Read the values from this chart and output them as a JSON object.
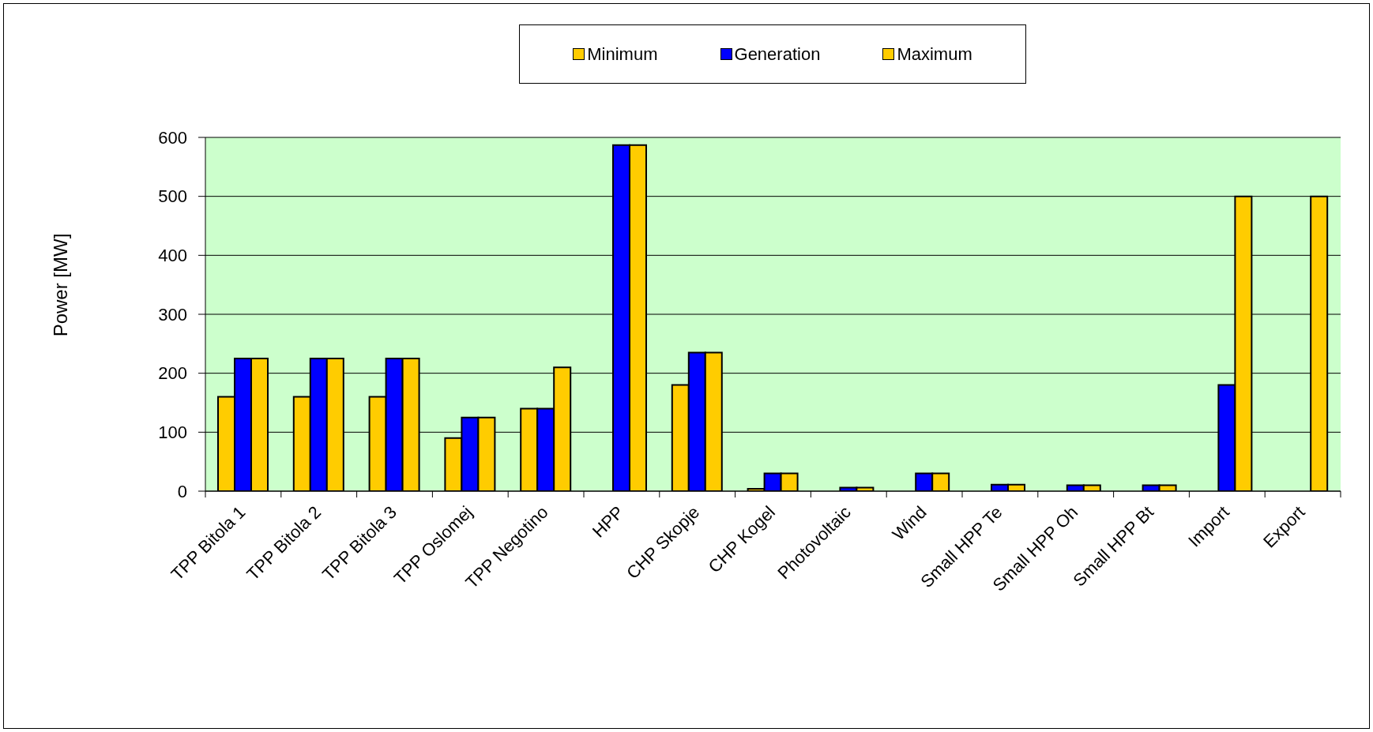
{
  "chart_data": {
    "type": "bar",
    "ylabel": "Power [MW]",
    "categories": [
      "TPP Bitola 1",
      "TPP Bitola 2",
      "TPP Bitola 3",
      "TPP Oslomej",
      "TPP Negotino",
      "HPP",
      "CHP Skopje",
      "CHP Kogel",
      "Photovoltaic",
      "Wind",
      "Small HPP Te",
      "Small HPP Oh",
      "Small HPP Bt",
      "Import",
      "Export"
    ],
    "series": [
      {
        "name": "Minimum",
        "color": "#ffcc00",
        "values": [
          160,
          160,
          160,
          90,
          140,
          null,
          180,
          4,
          null,
          null,
          null,
          null,
          null,
          null,
          null
        ]
      },
      {
        "name": "Generation",
        "color": "#0000ff",
        "values": [
          225,
          225,
          225,
          125,
          140,
          587,
          235,
          30,
          6,
          30,
          11,
          10,
          10,
          180,
          null
        ]
      },
      {
        "name": "Maximum",
        "color": "#ffcc00",
        "values": [
          225,
          225,
          225,
          125,
          210,
          587,
          235,
          30,
          6,
          30,
          11,
          10,
          10,
          500,
          500
        ]
      }
    ],
    "ylim": [
      0,
      600
    ],
    "yticks": [
      0,
      100,
      200,
      300,
      400,
      500,
      600
    ],
    "grid": "y",
    "legend": "top"
  }
}
